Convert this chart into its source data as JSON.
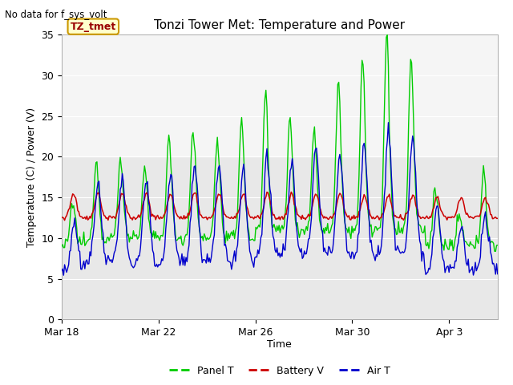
{
  "title": "Tonzi Tower Met: Temperature and Power",
  "subtitle": "No data for f_sys_volt",
  "xlabel": "Time",
  "ylabel": "Temperature (C) / Power (V)",
  "xlim_days": [
    0,
    18.0
  ],
  "ylim": [
    0,
    35
  ],
  "yticks": [
    0,
    5,
    10,
    15,
    20,
    25,
    30,
    35
  ],
  "xtick_labels": [
    "Mar 18",
    "Mar 22",
    "Mar 26",
    "Mar 30",
    "Apr 3"
  ],
  "xtick_positions": [
    0,
    4,
    8,
    12,
    16
  ],
  "annotation_text": "TZ_tmet",
  "legend_labels": [
    "Panel T",
    "Battery V",
    "Air T"
  ],
  "line_colors": [
    "#00cc00",
    "#cc0000",
    "#0000cc"
  ],
  "fig_bg_color": "#ffffff",
  "plot_bg_color": "#e8e8e8",
  "white_band_y1": 20,
  "white_band_y2": 35,
  "grid_color": "#ffffff",
  "title_fontsize": 11,
  "axis_fontsize": 9,
  "tick_fontsize": 9
}
